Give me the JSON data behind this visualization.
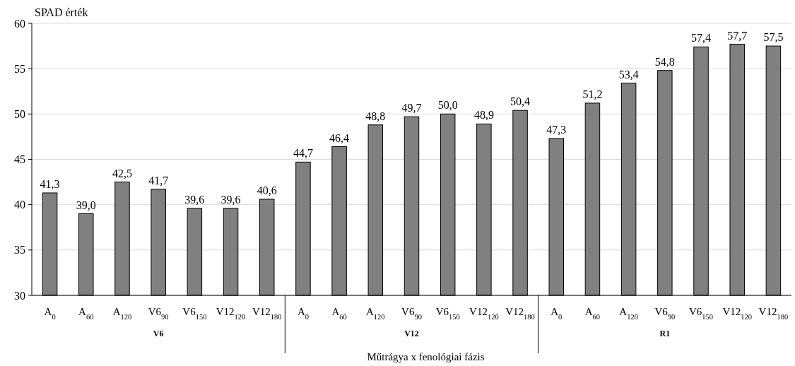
{
  "chart_data": {
    "type": "bar",
    "ylabel": "SPAD érték",
    "xlabel": "Műtrágya x fenológiai fázis",
    "categories": [
      "A$_{0}$",
      "A$_{60}$",
      "A$_{120}$",
      "V6$_{90}$",
      "V6$_{150}$",
      "V12$_{120}$",
      "V12$_{180}$",
      "A$_{0}$",
      "A$_{60}$",
      "A$_{120}$",
      "V6$_{90}$",
      "V6$_{150}$",
      "V12$_{120}$",
      "V12$_{180}$",
      "A$_{0}$",
      "A$_{60}$",
      "A$_{120}$",
      "V6$_{90}$",
      "V6$_{150}$",
      "V12$_{120}$",
      "V12$_{180}$"
    ],
    "values": [
      41.3,
      39.0,
      42.5,
      41.7,
      39.6,
      39.6,
      40.6,
      44.7,
      46.4,
      48.8,
      49.7,
      50.0,
      48.9,
      50.4,
      47.3,
      51.2,
      53.4,
      54.8,
      57.4,
      57.7,
      57.5
    ],
    "value_labels": [
      "41,3",
      "39,0",
      "42,5",
      "41,7",
      "39,6",
      "39,6",
      "40,6",
      "44,7",
      "46,4",
      "48,8",
      "49,7",
      "50,0",
      "48,9",
      "50,4",
      "47,3",
      "51,2",
      "53,4",
      "54,8",
      "57,4",
      "57,7",
      "57,5"
    ],
    "color": "#808080",
    "ylim": [
      30,
      60
    ],
    "yticks": [
      30,
      35,
      40,
      45,
      50,
      55,
      60
    ],
    "grid": "y",
    "annotations": [
      "V6",
      "V12",
      "R1"
    ]
  }
}
